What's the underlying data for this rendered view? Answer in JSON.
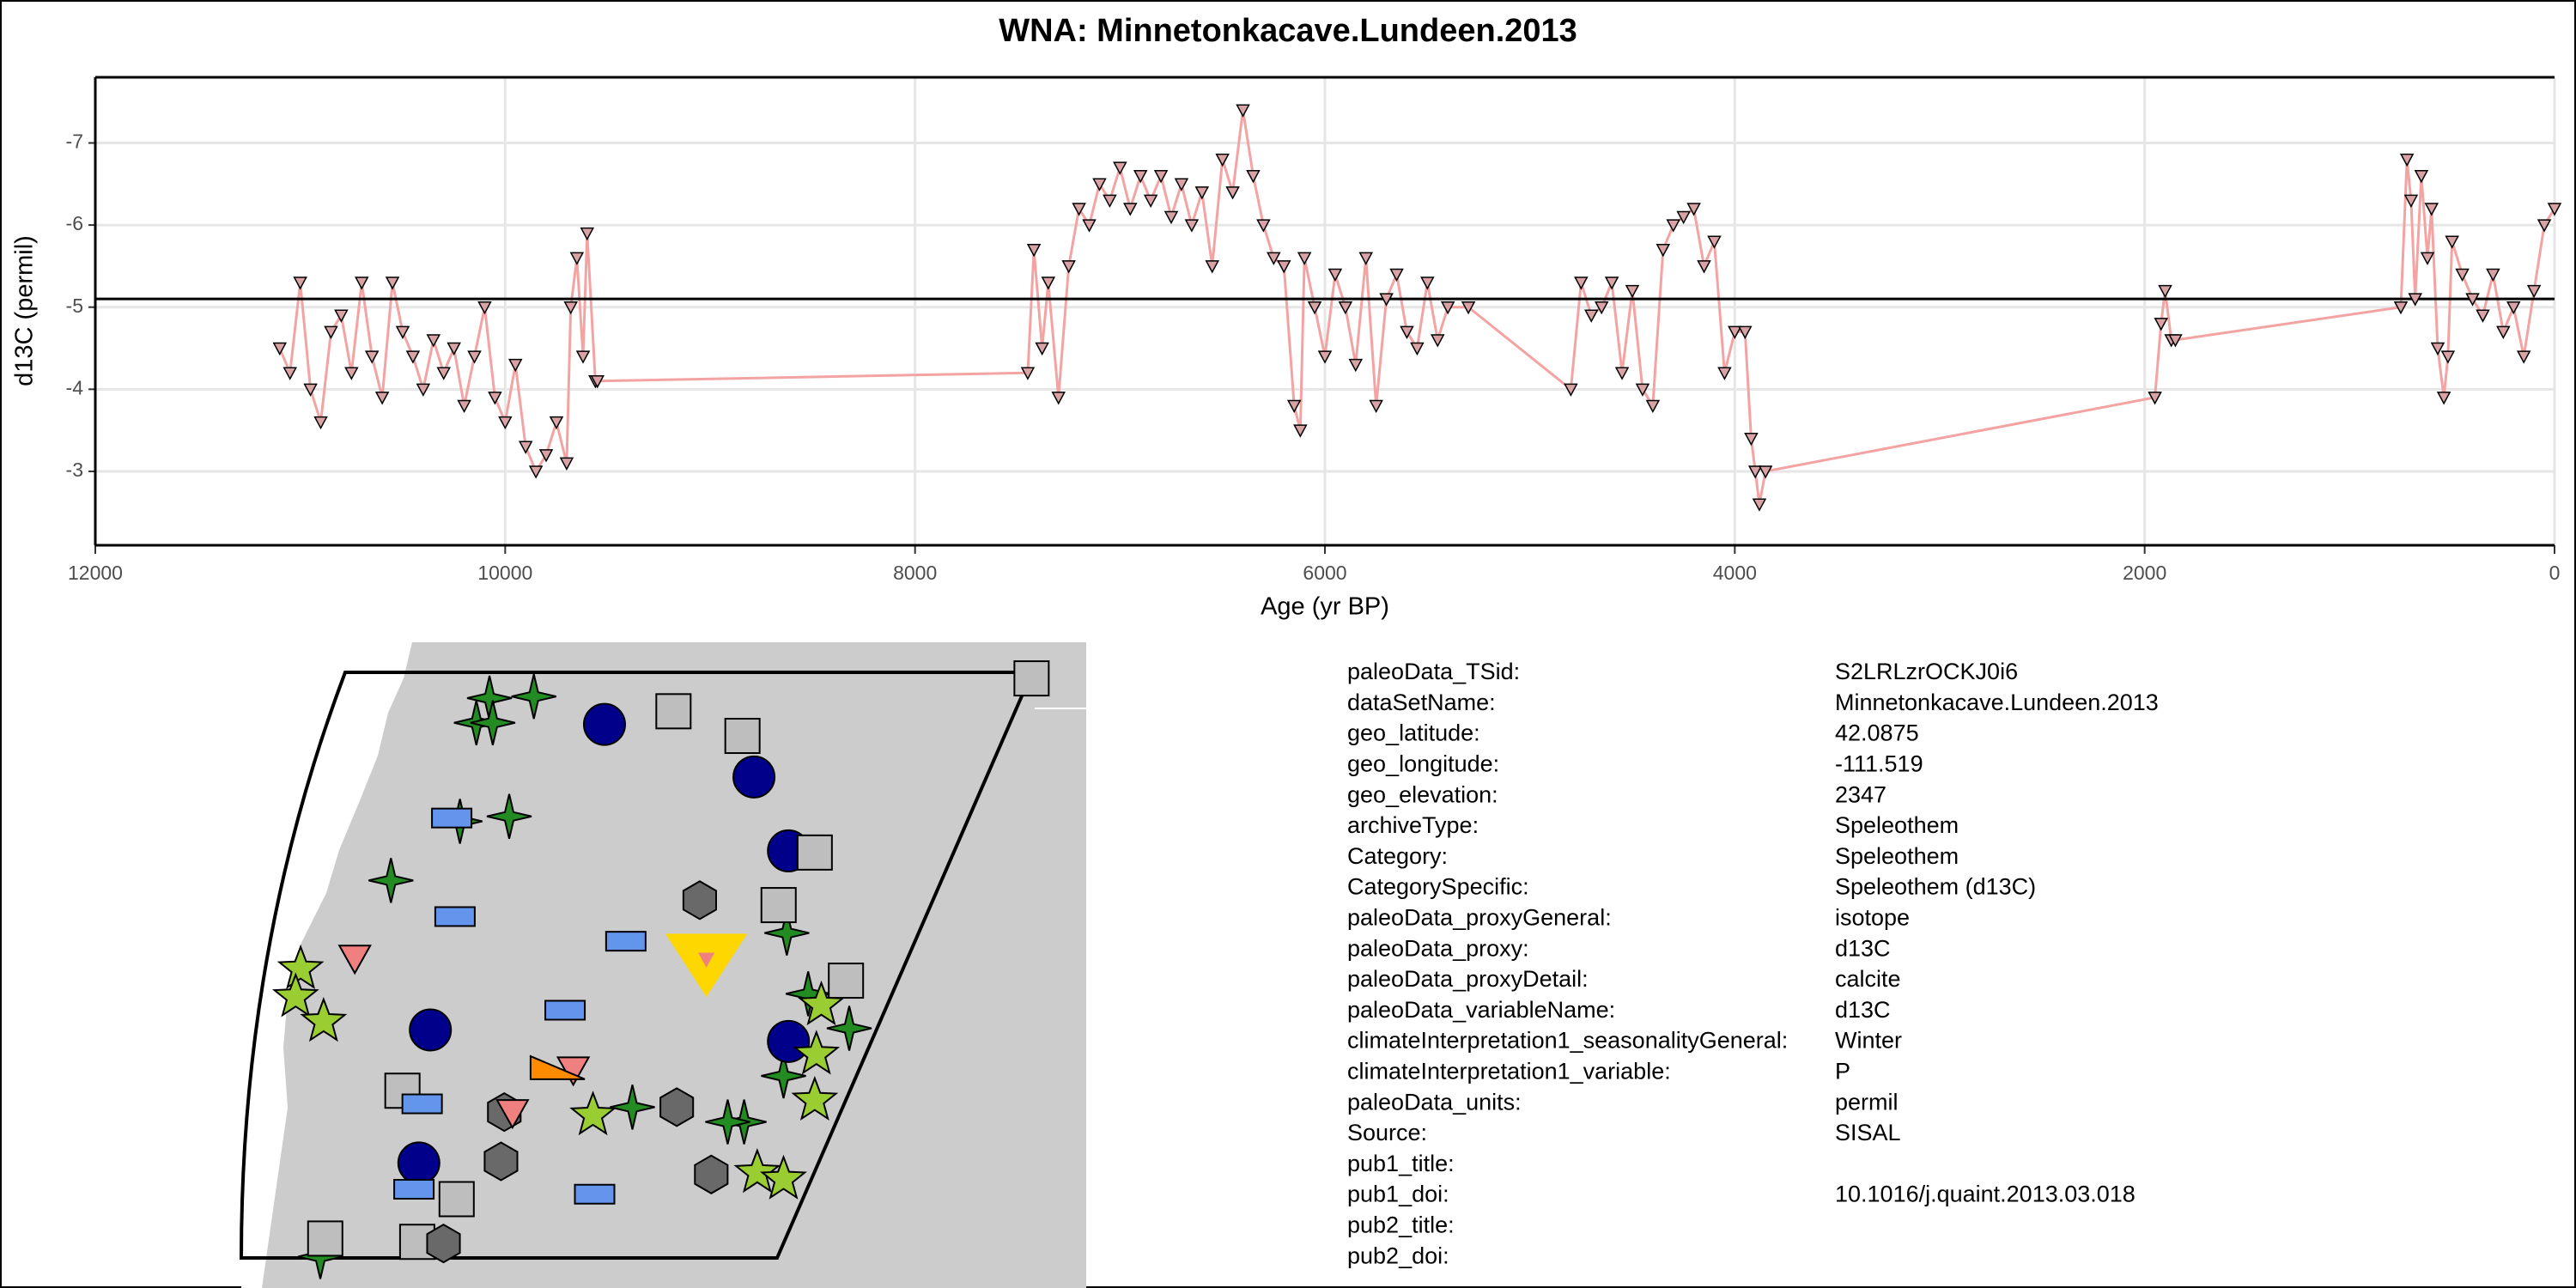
{
  "chart_data": {
    "type": "line",
    "title": "WNA: Minnetonkacave.Lundeen.2013",
    "x_label": "Age (yr BP)",
    "y_label": "d13C (permil)",
    "xlim": [
      12000,
      0
    ],
    "xticks": [
      12000,
      10000,
      8000,
      6000,
      4000,
      2000,
      0
    ],
    "ylim": [
      -2.1,
      -7.8
    ],
    "yticks": [
      -3,
      -4,
      -5,
      -6,
      -7
    ],
    "grid": true,
    "hline": -5.1,
    "line_color": "#f4a3a3",
    "marker_color": "#d9a3a6",
    "x": [
      11100,
      11050,
      11000,
      10950,
      10900,
      10850,
      10800,
      10750,
      10700,
      10650,
      10600,
      10550,
      10500,
      10450,
      10400,
      10350,
      10300,
      10250,
      10200,
      10150,
      10100,
      10050,
      10000,
      9950,
      9900,
      9850,
      9800,
      9750,
      9700,
      9680,
      9650,
      9620,
      9600,
      9560,
      9550,
      7450,
      7420,
      7380,
      7350,
      7300,
      7250,
      7200,
      7150,
      7100,
      7050,
      7000,
      6950,
      6900,
      6850,
      6800,
      6750,
      6700,
      6650,
      6600,
      6550,
      6500,
      6450,
      6400,
      6350,
      6300,
      6250,
      6200,
      6150,
      6120,
      6100,
      6050,
      6000,
      5950,
      5900,
      5850,
      5800,
      5750,
      5700,
      5650,
      5600,
      5550,
      5500,
      5450,
      5400,
      5300,
      4800,
      4750,
      4700,
      4650,
      4600,
      4550,
      4500,
      4450,
      4400,
      4350,
      4300,
      4250,
      4200,
      4150,
      4100,
      4050,
      4000,
      3950,
      3920,
      3900,
      3880,
      3850,
      1950,
      1920,
      1900,
      1870,
      1850,
      750,
      720,
      700,
      680,
      650,
      620,
      600,
      570,
      540,
      520,
      500,
      450,
      400,
      350,
      300,
      250,
      200,
      150,
      100,
      50,
      0
    ],
    "values": [
      -4.5,
      -4.2,
      -5.3,
      -4.0,
      -3.6,
      -4.7,
      -4.9,
      -4.2,
      -5.3,
      -4.4,
      -3.9,
      -5.3,
      -4.7,
      -4.4,
      -4.0,
      -4.6,
      -4.2,
      -4.5,
      -3.8,
      -4.4,
      -5.0,
      -3.9,
      -3.6,
      -4.3,
      -3.3,
      -3.0,
      -3.2,
      -3.6,
      -3.1,
      -5.0,
      -5.6,
      -4.4,
      -5.9,
      -4.1,
      -4.1,
      -4.2,
      -5.7,
      -4.5,
      -5.3,
      -3.9,
      -5.5,
      -6.2,
      -6.0,
      -6.5,
      -6.3,
      -6.7,
      -6.2,
      -6.6,
      -6.3,
      -6.6,
      -6.1,
      -6.5,
      -6.0,
      -6.4,
      -5.5,
      -6.8,
      -6.4,
      -7.4,
      -6.6,
      -6.0,
      -5.6,
      -5.5,
      -3.8,
      -3.5,
      -5.6,
      -5.0,
      -4.4,
      -5.4,
      -5.0,
      -4.3,
      -5.6,
      -3.8,
      -5.1,
      -5.4,
      -4.7,
      -4.5,
      -5.3,
      -4.6,
      -5.0,
      -5.0,
      -4.0,
      -5.3,
      -4.9,
      -5.0,
      -5.3,
      -4.2,
      -5.2,
      -4.0,
      -3.8,
      -5.7,
      -6.0,
      -6.1,
      -6.2,
      -5.5,
      -5.8,
      -4.2,
      -4.7,
      -4.7,
      -3.4,
      -3.0,
      -2.6,
      -3.0,
      -3.9,
      -4.8,
      -5.2,
      -4.6,
      -4.6,
      -5.0,
      -6.8,
      -6.3,
      -5.1,
      -6.6,
      -5.6,
      -6.2,
      -4.5,
      -3.9,
      -4.4,
      -5.8,
      -5.4,
      -5.1,
      -4.9,
      -5.4,
      -4.7,
      -5.0,
      -4.4,
      -5.2,
      -6.0,
      -6.2
    ]
  },
  "metadata": {
    "rows": [
      [
        "paleoData_TSid:",
        "S2LRLzrOCKJ0i6"
      ],
      [
        "dataSetName:",
        "Minnetonkacave.Lundeen.2013"
      ],
      [
        "geo_latitude:",
        "42.0875"
      ],
      [
        "geo_longitude:",
        "-111.519"
      ],
      [
        "geo_elevation:",
        "2347"
      ],
      [
        "archiveType:",
        "Speleothem"
      ],
      [
        "Category:",
        "Speleothem"
      ],
      [
        "CategorySpecific:",
        "Speleothem (d13C)"
      ],
      [
        "paleoData_proxyGeneral:",
        "isotope"
      ],
      [
        "paleoData_proxy:",
        "d13C"
      ],
      [
        "paleoData_proxyDetail:",
        "calcite"
      ],
      [
        "paleoData_variableName:",
        "d13C"
      ],
      [
        "climateInterpretation1_seasonalityGeneral:",
        "Winter"
      ],
      [
        "climateInterpretation1_variable:",
        "P"
      ],
      [
        "paleoData_units:",
        "permil"
      ],
      [
        "Source:",
        "SISAL"
      ],
      [
        "pub1_title:"
      ],
      [
        "pub1_doi:",
        "10.1016/j.quaint.2013.03.018"
      ],
      [
        "pub2_title:"
      ],
      [
        "pub2_doi:"
      ]
    ]
  }
}
